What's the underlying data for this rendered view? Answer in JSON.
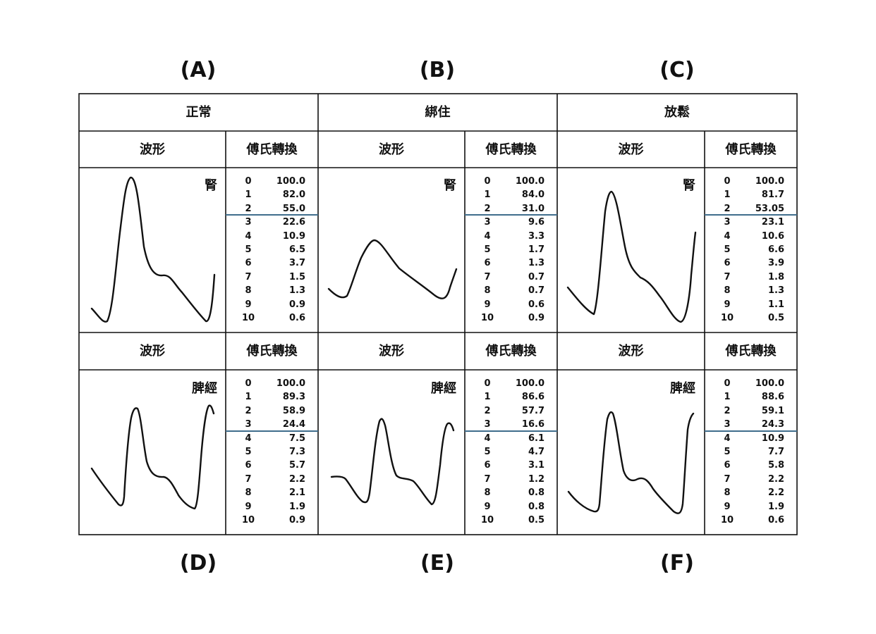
{
  "panel_labels": {
    "top": [
      "(A)",
      "(B)",
      "(C)"
    ],
    "bottom": [
      "(D)",
      "(E)",
      "(F)"
    ]
  },
  "columns": [
    {
      "header": "正常",
      "wave_header": "波形",
      "fourier_header": "傅氏轉換",
      "kidney": {
        "organ": "腎",
        "values": [
          "100.0",
          "82.0",
          "55.0",
          "22.6",
          "10.9",
          "6.5",
          "3.7",
          "1.5",
          "1.3",
          "0.9",
          "0.6"
        ]
      },
      "spleen": {
        "organ": "脾經",
        "values": [
          "100.0",
          "89.3",
          "58.9",
          "24.4",
          "7.5",
          "7.3",
          "5.7",
          "2.2",
          "2.1",
          "1.9",
          "0.9"
        ]
      }
    },
    {
      "header": "綁住",
      "wave_header": "波形",
      "fourier_header": "傅氏轉換",
      "kidney": {
        "organ": "腎",
        "values": [
          "100.0",
          "84.0",
          "31.0",
          "9.6",
          "3.3",
          "1.7",
          "1.3",
          "0.7",
          "0.7",
          "0.6",
          "0.9"
        ]
      },
      "spleen": {
        "organ": "脾經",
        "values": [
          "100.0",
          "86.6",
          "57.7",
          "16.6",
          "6.1",
          "4.7",
          "3.1",
          "1.2",
          "0.8",
          "0.8",
          "0.5"
        ]
      }
    },
    {
      "header": "放鬆",
      "wave_header": "波形",
      "fourier_header": "傅氏轉換",
      "kidney": {
        "organ": "腎",
        "values": [
          "100.0",
          "81.7",
          "53.05",
          "23.1",
          "10.6",
          "6.6",
          "3.9",
          "1.8",
          "1.3",
          "1.1",
          "0.5"
        ]
      },
      "spleen": {
        "organ": "脾經",
        "values": [
          "100.0",
          "88.6",
          "59.1",
          "24.3",
          "10.9",
          "7.7",
          "5.8",
          "2.2",
          "2.2",
          "1.9",
          "0.6"
        ]
      }
    }
  ],
  "harmonic_indices": [
    "0",
    "1",
    "2",
    "3",
    "4",
    "5",
    "6",
    "7",
    "8",
    "9",
    "10"
  ],
  "colors": {
    "divider": "#3f6d8c",
    "line": "#111111"
  }
}
